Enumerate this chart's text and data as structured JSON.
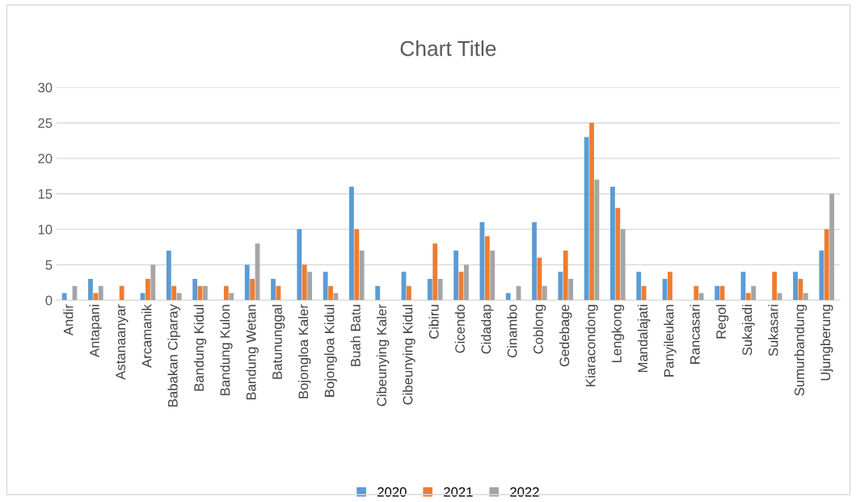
{
  "chart_data": {
    "type": "bar",
    "title": "Chart Title",
    "categories": [
      "Andir",
      "Antapani",
      "Astanaanyar",
      "Arcamanik",
      "Babakan Ciparay",
      "Bandung Kidul",
      "Bandung Kulon",
      "Bandung Wetan",
      "Batununggal",
      "Bojongloa Kaler",
      "Bojongloa Kidul",
      "Buah Batu",
      "Cibeunying Kaler",
      "Cibeunying Kidul",
      "Cibiru",
      "Cicendo",
      "Cidadap",
      "Cinambo",
      "Coblong",
      "Gedebage",
      "Kiaracondong",
      "Lengkong",
      "Mandalajati",
      "Panyileukan",
      "Rancasari",
      "Regol",
      "Sukajadi",
      "Sukasari",
      "Sumurbandung",
      "Ujungberung"
    ],
    "series": [
      {
        "name": "2020",
        "color": "#5b9bd5",
        "values": [
          1,
          3,
          0,
          1,
          7,
          3,
          0,
          5,
          3,
          10,
          4,
          16,
          2,
          4,
          3,
          7,
          11,
          1,
          11,
          4,
          23,
          16,
          4,
          3,
          0,
          2,
          4,
          0,
          4,
          7
        ]
      },
      {
        "name": "2021",
        "color": "#ed7d31",
        "values": [
          0,
          1,
          2,
          3,
          2,
          2,
          2,
          3,
          2,
          5,
          2,
          10,
          0,
          2,
          8,
          4,
          9,
          0,
          6,
          7,
          25,
          13,
          2,
          4,
          2,
          2,
          1,
          4,
          3,
          10
        ]
      },
      {
        "name": "2022",
        "color": "#a5a5a5",
        "values": [
          2,
          2,
          0,
          5,
          1,
          2,
          1,
          8,
          0,
          4,
          1,
          7,
          0,
          0,
          3,
          5,
          7,
          2,
          2,
          3,
          17,
          10,
          0,
          0,
          1,
          0,
          2,
          1,
          1,
          15
        ]
      }
    ],
    "ylim": [
      0,
      30
    ],
    "yticks": [
      0,
      5,
      10,
      15,
      20,
      25,
      30
    ],
    "grid": "y",
    "legend": "bottom"
  }
}
